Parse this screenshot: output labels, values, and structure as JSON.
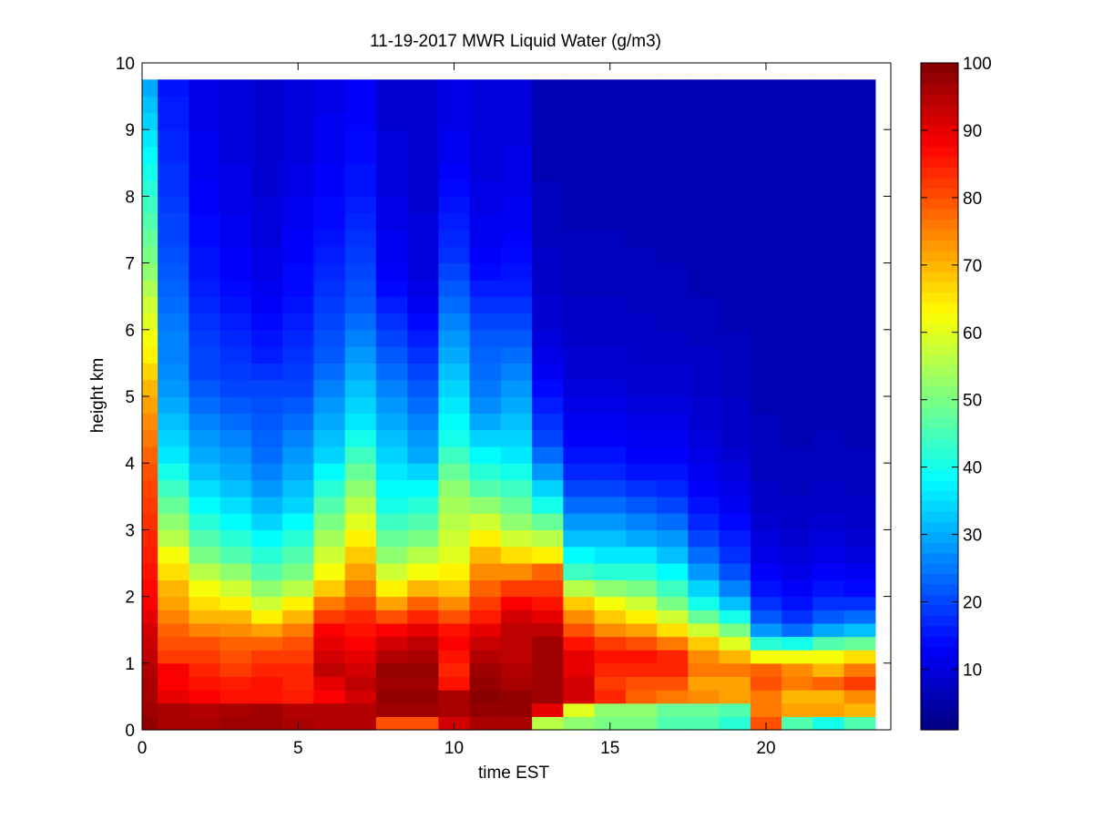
{
  "chart_data": {
    "type": "heatmap",
    "title": "11-19-2017 MWR Liquid Water (g/m3)",
    "xlabel": "time EST",
    "ylabel": "height km",
    "xlim": [
      0,
      24
    ],
    "ylim": [
      0,
      10
    ],
    "xticks": [
      0,
      5,
      10,
      15,
      20
    ],
    "yticks": [
      0,
      1,
      2,
      3,
      4,
      5,
      6,
      7,
      8,
      9,
      10
    ],
    "colorbar": {
      "colormap": "jet",
      "clim": [
        1,
        100
      ],
      "ticks": [
        10,
        20,
        30,
        40,
        50,
        60,
        70,
        80,
        90,
        100
      ]
    },
    "x": [
      0.25,
      1,
      2,
      3,
      4,
      5,
      6,
      7,
      8,
      9,
      10,
      11,
      12,
      13,
      14,
      15,
      16,
      17,
      18,
      19,
      20,
      21,
      22,
      23
    ],
    "x_edges": [
      0,
      0.5,
      1.5,
      2.5,
      3.5,
      4.5,
      5.5,
      6.5,
      7.5,
      8.5,
      9.5,
      10.5,
      11.5,
      12.5,
      13.5,
      14.5,
      15.5,
      16.5,
      17.5,
      18.5,
      19.5,
      20.5,
      21.5,
      22.5,
      23.5
    ],
    "heights": [
      0,
      0.1,
      0.2,
      0.3,
      0.4,
      0.5,
      0.6,
      0.7,
      0.8,
      0.9,
      1.0,
      1.2,
      1.4,
      1.6,
      1.8,
      2.0,
      2.25,
      2.5,
      2.75,
      3.0,
      3.25,
      3.5,
      3.75,
      4.0,
      4.25,
      4.5,
      4.75,
      5.0,
      5.25,
      5.5,
      5.75,
      6.0,
      6.25,
      6.5,
      6.75,
      7.0,
      7.25,
      7.5,
      7.75,
      8.0,
      8.25,
      8.5,
      8.75,
      9.0,
      9.25,
      9.5,
      9.75
    ],
    "z": [
      [
        98,
        98,
        97,
        97,
        96,
        96,
        96,
        96,
        95,
        95,
        94,
        93,
        92,
        90,
        88,
        87,
        86,
        85,
        84,
        83,
        82,
        81,
        80,
        78,
        76,
        74,
        72,
        70,
        67,
        64,
        62,
        60,
        58,
        55,
        52,
        50,
        48,
        46,
        44,
        42,
        40,
        38,
        36,
        34,
        32,
        30
      ],
      [
        96,
        96,
        96,
        96,
        90,
        90,
        88,
        88,
        88,
        88,
        82,
        80,
        78,
        75,
        72,
        70,
        66,
        62,
        56,
        52,
        48,
        44,
        40,
        36,
        34,
        32,
        30,
        28,
        27,
        26,
        26,
        25,
        24,
        23,
        22,
        21,
        20,
        20,
        19,
        18,
        18,
        17,
        17,
        16,
        16,
        15
      ],
      [
        96,
        96,
        95,
        95,
        88,
        88,
        86,
        86,
        84,
        84,
        82,
        80,
        75,
        70,
        66,
        62,
        56,
        50,
        46,
        42,
        38,
        35,
        32,
        30,
        28,
        26,
        24,
        22,
        20,
        20,
        19,
        18,
        17,
        16,
        15,
        15,
        14,
        14,
        13,
        13,
        12,
        12,
        12,
        11,
        11,
        11
      ],
      [
        97,
        97,
        96,
        96,
        86,
        86,
        85,
        85,
        82,
        82,
        80,
        78,
        74,
        70,
        64,
        58,
        52,
        46,
        42,
        38,
        35,
        32,
        30,
        28,
        26,
        24,
        22,
        20,
        19,
        18,
        17,
        16,
        15,
        14,
        13,
        13,
        12,
        12,
        11,
        11,
        11,
        10,
        10,
        10,
        10,
        10
      ],
      [
        97,
        97,
        97,
        97,
        86,
        86,
        86,
        86,
        84,
        84,
        82,
        78,
        72,
        64,
        58,
        52,
        46,
        42,
        38,
        34,
        31,
        28,
        26,
        24,
        23,
        22,
        21,
        20,
        18,
        16,
        15,
        14,
        13,
        12,
        11,
        11,
        10,
        10,
        10,
        9,
        9,
        9,
        9,
        9,
        9,
        9
      ],
      [
        96,
        96,
        95,
        95,
        85,
        85,
        84,
        84,
        84,
        84,
        82,
        80,
        76,
        70,
        64,
        56,
        50,
        46,
        42,
        38,
        34,
        32,
        30,
        28,
        26,
        24,
        22,
        20,
        19,
        18,
        17,
        16,
        15,
        14,
        14,
        13,
        13,
        12,
        12,
        11,
        11,
        10,
        10,
        10,
        10,
        10
      ],
      [
        95,
        95,
        95,
        95,
        88,
        88,
        90,
        90,
        94,
        94,
        92,
        90,
        88,
        82,
        76,
        68,
        62,
        58,
        54,
        50,
        46,
        42,
        38,
        34,
        32,
        30,
        28,
        26,
        24,
        22,
        21,
        20,
        19,
        18,
        17,
        16,
        15,
        14,
        14,
        13,
        13,
        12,
        12,
        12,
        11,
        11
      ],
      [
        95,
        95,
        95,
        95,
        92,
        92,
        94,
        94,
        92,
        92,
        90,
        88,
        86,
        84,
        80,
        76,
        72,
        68,
        64,
        60,
        56,
        52,
        48,
        44,
        40,
        36,
        34,
        32,
        30,
        28,
        26,
        24,
        22,
        21,
        20,
        19,
        18,
        17,
        16,
        15,
        15,
        14,
        14,
        13,
        13,
        13
      ],
      [
        80,
        80,
        97,
        97,
        98,
        98,
        97,
        97,
        98,
        98,
        95,
        92,
        88,
        80,
        72,
        64,
        58,
        52,
        48,
        44,
        40,
        38,
        36,
        34,
        32,
        30,
        28,
        26,
        24,
        22,
        20,
        18,
        16,
        14,
        13,
        12,
        12,
        11,
        11,
        10,
        10,
        10,
        10,
        9,
        9,
        9
      ],
      [
        80,
        80,
        97,
        97,
        98,
        98,
        97,
        97,
        98,
        98,
        96,
        94,
        90,
        84,
        78,
        70,
        62,
        56,
        50,
        46,
        42,
        38,
        34,
        30,
        28,
        26,
        24,
        22,
        20,
        18,
        16,
        14,
        12,
        11,
        10,
        10,
        10,
        10,
        9,
        9,
        9,
        9,
        9,
        9,
        9,
        9
      ],
      [
        92,
        92,
        96,
        96,
        96,
        96,
        86,
        86,
        84,
        84,
        86,
        88,
        86,
        80,
        74,
        68,
        64,
        60,
        58,
        56,
        54,
        52,
        48,
        44,
        40,
        38,
        36,
        34,
        32,
        30,
        28,
        26,
        24,
        22,
        20,
        18,
        17,
        16,
        15,
        14,
        13,
        12,
        12,
        11,
        11,
        11
      ],
      [
        96,
        96,
        98,
        98,
        99,
        99,
        98,
        98,
        97,
        97,
        95,
        93,
        90,
        85,
        82,
        78,
        74,
        70,
        64,
        58,
        52,
        46,
        42,
        38,
        34,
        30,
        27,
        25,
        24,
        23,
        22,
        20,
        18,
        16,
        14,
        13,
        12,
        12,
        11,
        11,
        10,
        10,
        10,
        10,
        10,
        10
      ],
      [
        96,
        96,
        98,
        98,
        98,
        98,
        96,
        96,
        95,
        95,
        94,
        94,
        94,
        92,
        88,
        82,
        74,
        66,
        58,
        52,
        48,
        44,
        40,
        36,
        34,
        32,
        30,
        28,
        26,
        24,
        22,
        20,
        18,
        16,
        15,
        14,
        13,
        12,
        12,
        11,
        11,
        11,
        10,
        10,
        10,
        10
      ],
      [
        56,
        56,
        90,
        90,
        97,
        97,
        97,
        97,
        97,
        97,
        97,
        97,
        94,
        90,
        86,
        82,
        78,
        64,
        56,
        48,
        40,
        34,
        28,
        24,
        20,
        18,
        16,
        14,
        12,
        11,
        10,
        9,
        9,
        8,
        8,
        8,
        7,
        7,
        7,
        7,
        6,
        6,
        6,
        6,
        6,
        6
      ],
      [
        52,
        52,
        60,
        60,
        92,
        92,
        92,
        92,
        90,
        90,
        90,
        86,
        80,
        74,
        68,
        56,
        44,
        38,
        32,
        28,
        24,
        20,
        17,
        15,
        13,
        12,
        11,
        10,
        9,
        9,
        8,
        8,
        8,
        7,
        7,
        7,
        7,
        6,
        6,
        6,
        6,
        6,
        6,
        6,
        6,
        6
      ],
      [
        50,
        50,
        52,
        52,
        84,
        84,
        82,
        82,
        84,
        84,
        86,
        82,
        74,
        68,
        62,
        52,
        42,
        36,
        32,
        28,
        24,
        20,
        17,
        15,
        13,
        12,
        11,
        10,
        9,
        9,
        8,
        8,
        8,
        7,
        7,
        7,
        7,
        6,
        6,
        6,
        6,
        6,
        6,
        6,
        6,
        6
      ],
      [
        50,
        50,
        52,
        52,
        78,
        78,
        80,
        80,
        84,
        84,
        86,
        80,
        72,
        64,
        58,
        50,
        42,
        36,
        30,
        26,
        22,
        18,
        15,
        13,
        12,
        11,
        10,
        9,
        9,
        8,
        8,
        8,
        7,
        7,
        7,
        7,
        6,
        6,
        6,
        6,
        6,
        6,
        6,
        6,
        6,
        6
      ],
      [
        46,
        46,
        48,
        48,
        76,
        76,
        80,
        80,
        84,
        84,
        84,
        76,
        66,
        58,
        50,
        44,
        38,
        32,
        28,
        24,
        20,
        17,
        15,
        13,
        12,
        11,
        10,
        9,
        9,
        8,
        8,
        7,
        7,
        7,
        7,
        6,
        6,
        6,
        6,
        6,
        6,
        6,
        6,
        6,
        6,
        6
      ],
      [
        46,
        46,
        48,
        48,
        74,
        74,
        72,
        72,
        76,
        76,
        74,
        68,
        58,
        48,
        40,
        34,
        28,
        24,
        20,
        17,
        15,
        13,
        12,
        11,
        10,
        9,
        9,
        8,
        8,
        8,
        7,
        7,
        7,
        6,
        6,
        6,
        6,
        6,
        6,
        6,
        6,
        6,
        6,
        6,
        6,
        6
      ],
      [
        42,
        42,
        46,
        46,
        72,
        72,
        72,
        72,
        76,
        76,
        70,
        60,
        50,
        40,
        32,
        26,
        21,
        18,
        16,
        14,
        12,
        11,
        10,
        9,
        8,
        8,
        8,
        7,
        7,
        7,
        7,
        6,
        6,
        6,
        6,
        6,
        6,
        6,
        6,
        6,
        6,
        6,
        6,
        6,
        6,
        6
      ],
      [
        80,
        80,
        76,
        76,
        76,
        76,
        80,
        80,
        78,
        78,
        62,
        42,
        28,
        22,
        18,
        15,
        13,
        11,
        10,
        9,
        8,
        8,
        7,
        7,
        7,
        7,
        6,
        6,
        6,
        6,
        6,
        6,
        6,
        6,
        6,
        6,
        6,
        6,
        6,
        6,
        6,
        6,
        6,
        6,
        6,
        6
      ],
      [
        46,
        46,
        72,
        72,
        70,
        70,
        76,
        76,
        74,
        74,
        62,
        40,
        24,
        18,
        15,
        13,
        11,
        10,
        9,
        8,
        8,
        7,
        7,
        7,
        6,
        6,
        6,
        6,
        6,
        6,
        6,
        6,
        6,
        6,
        6,
        6,
        6,
        6,
        6,
        6,
        6,
        6,
        6,
        6,
        6,
        6
      ],
      [
        40,
        40,
        72,
        72,
        70,
        70,
        78,
        78,
        70,
        70,
        62,
        46,
        30,
        22,
        18,
        15,
        13,
        11,
        10,
        9,
        8,
        8,
        7,
        7,
        7,
        6,
        6,
        6,
        6,
        6,
        6,
        6,
        6,
        6,
        6,
        6,
        6,
        6,
        6,
        6,
        6,
        6,
        6,
        6,
        6,
        6
      ],
      [
        46,
        46,
        70,
        70,
        74,
        74,
        82,
        82,
        76,
        76,
        66,
        48,
        32,
        24,
        18,
        14,
        12,
        10,
        9,
        8,
        8,
        7,
        7,
        7,
        6,
        6,
        6,
        6,
        6,
        6,
        6,
        6,
        6,
        6,
        6,
        6,
        6,
        6,
        6,
        6,
        6,
        6,
        6,
        6,
        6,
        6
      ]
    ]
  }
}
